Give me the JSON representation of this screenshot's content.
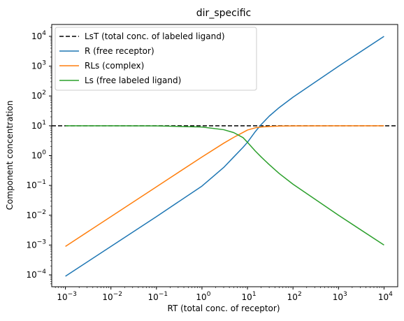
{
  "chart_data": {
    "type": "line",
    "title": "dir_specific",
    "xlabel": "RT (total conc. of receptor)",
    "ylabel": "Component concentration",
    "xscale": "log",
    "yscale": "log",
    "xlim": [
      0.0005,
      20000
    ],
    "ylim": [
      4e-05,
      25000
    ],
    "xticks": [
      {
        "value": 0.001,
        "base": "10",
        "exp": "−3"
      },
      {
        "value": 0.01,
        "base": "10",
        "exp": "−2"
      },
      {
        "value": 0.1,
        "base": "10",
        "exp": "−1"
      },
      {
        "value": 1,
        "base": "10",
        "exp": "0"
      },
      {
        "value": 10,
        "base": "10",
        "exp": "1"
      },
      {
        "value": 100,
        "base": "10",
        "exp": "2"
      },
      {
        "value": 1000,
        "base": "10",
        "exp": "3"
      },
      {
        "value": 10000,
        "base": "10",
        "exp": "4"
      }
    ],
    "yticks": [
      {
        "value": 0.0001,
        "base": "10",
        "exp": "−4"
      },
      {
        "value": 0.001,
        "base": "10",
        "exp": "−3"
      },
      {
        "value": 0.01,
        "base": "10",
        "exp": "−2"
      },
      {
        "value": 0.1,
        "base": "10",
        "exp": "−1"
      },
      {
        "value": 1,
        "base": "10",
        "exp": "0"
      },
      {
        "value": 10,
        "base": "10",
        "exp": "1"
      },
      {
        "value": 100,
        "base": "10",
        "exp": "2"
      },
      {
        "value": 1000,
        "base": "10",
        "exp": "3"
      },
      {
        "value": 10000,
        "base": "10",
        "exp": "4"
      }
    ],
    "legend_position": "top-left",
    "grid": false,
    "hline": {
      "name": "LsT (total conc. of labeled ligand)",
      "y": 10,
      "color": "#000000",
      "dash": true
    },
    "series": [
      {
        "name": "R (free receptor)",
        "color": "#1f77b4",
        "points": [
          [
            0.001,
            9e-05
          ],
          [
            0.01,
            0.0009
          ],
          [
            0.1,
            0.009
          ],
          [
            1,
            0.095
          ],
          [
            3,
            0.4
          ],
          [
            5,
            0.9
          ],
          [
            8,
            1.9
          ],
          [
            10,
            2.8
          ],
          [
            15,
            6.5
          ],
          [
            20,
            11
          ],
          [
            30,
            21
          ],
          [
            50,
            41
          ],
          [
            100,
            91
          ],
          [
            1000,
            990
          ],
          [
            10000,
            9990
          ]
        ]
      },
      {
        "name": "RLs (complex)",
        "color": "#ff7f0e",
        "points": [
          [
            0.001,
            0.0009
          ],
          [
            0.01,
            0.009
          ],
          [
            0.1,
            0.09
          ],
          [
            1,
            0.9
          ],
          [
            3,
            2.6
          ],
          [
            5,
            4.1
          ],
          [
            8,
            6.0
          ],
          [
            10,
            7.2
          ],
          [
            15,
            8.6
          ],
          [
            20,
            9.1
          ],
          [
            30,
            9.5
          ],
          [
            50,
            9.8
          ],
          [
            100,
            9.9
          ],
          [
            1000,
            9.99
          ],
          [
            10000,
            10
          ]
        ]
      },
      {
        "name": "Ls (free labeled ligand)",
        "color": "#2ca02c",
        "points": [
          [
            0.001,
            10
          ],
          [
            0.01,
            10
          ],
          [
            0.1,
            9.9
          ],
          [
            1,
            9.1
          ],
          [
            3,
            7.4
          ],
          [
            5,
            5.9
          ],
          [
            8,
            4.0
          ],
          [
            10,
            2.8
          ],
          [
            15,
            1.4
          ],
          [
            20,
            0.9
          ],
          [
            30,
            0.5
          ],
          [
            50,
            0.25
          ],
          [
            100,
            0.11
          ],
          [
            1000,
            0.01
          ],
          [
            10000,
            0.001
          ]
        ]
      }
    ]
  }
}
